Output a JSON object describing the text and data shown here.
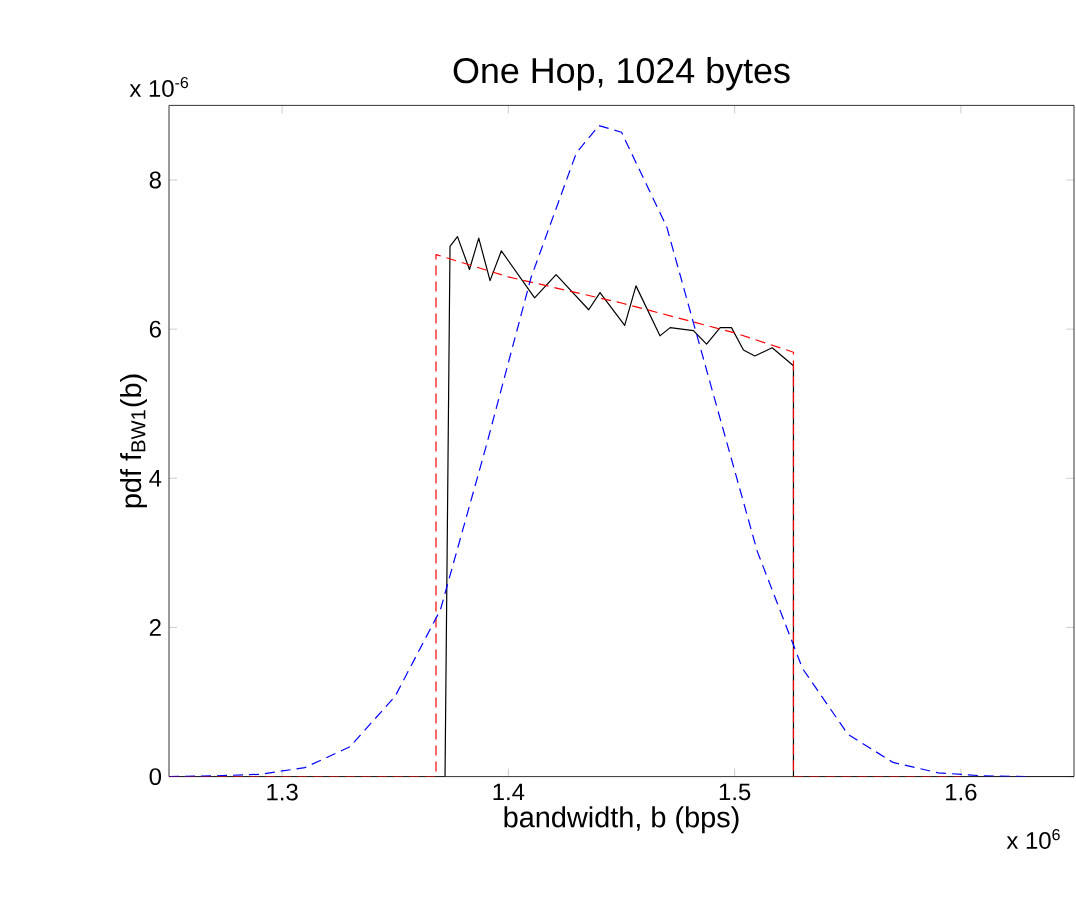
{
  "chart_data": {
    "type": "line",
    "title": "One Hop, 1024 bytes",
    "xlabel": "bandwidth, b (bps)",
    "ylabel": "pdf f$_{BW1}$(b)",
    "annotations": [
      "x 10$^{-6}$",
      "x 10$^{6}$"
    ],
    "xlim": [
      1.25,
      1.65
    ],
    "ylim": [
      0,
      9
    ],
    "xticks": [
      1.3,
      1.4,
      1.5,
      1.6
    ],
    "yticks": [
      0,
      2,
      4,
      6,
      8
    ],
    "grid": false,
    "marker": "none",
    "series": [
      {
        "color": "#000000",
        "line_style": "solid",
        "x": [
          1.25,
          1.372,
          1.3742,
          1.3775,
          1.3828,
          1.3869,
          1.3919,
          1.3969,
          1.4116,
          1.4211,
          1.4355,
          1.4405,
          1.4514,
          1.4564,
          1.467,
          1.4715,
          1.4818,
          1.4876,
          1.4936,
          1.4986,
          1.5039,
          1.5089,
          1.5166,
          1.526,
          1.526,
          1.65
        ],
        "values": [
          0,
          0,
          7.11,
          7.24,
          6.8,
          7.22,
          6.65,
          7.05,
          6.42,
          6.73,
          6.26,
          6.49,
          6.05,
          6.58,
          5.91,
          6.02,
          5.98,
          5.8,
          6.02,
          6.02,
          5.72,
          5.64,
          5.75,
          5.51,
          0,
          0
        ]
      },
      {
        "color": "#ff0000",
        "line_style": "dashed",
        "x": [
          1.25,
          1.368,
          1.368,
          1.4,
          1.45,
          1.5,
          1.526,
          1.526,
          1.6
        ],
        "values": [
          0,
          0,
          7.0,
          6.7,
          6.35,
          5.95,
          5.69,
          0,
          0
        ]
      },
      {
        "color": "#0000ff",
        "line_style": "dashed",
        "x": [
          1.25,
          1.27,
          1.29,
          1.31,
          1.33,
          1.35,
          1.37,
          1.39,
          1.41,
          1.43,
          1.44,
          1.45,
          1.47,
          1.49,
          1.51,
          1.53,
          1.55,
          1.57,
          1.59,
          1.61,
          1.63
        ],
        "values": [
          0,
          0.01,
          0.03,
          0.12,
          0.4,
          1.08,
          2.24,
          4.41,
          6.69,
          8.36,
          8.73,
          8.64,
          7.37,
          5.19,
          3.02,
          1.45,
          0.57,
          0.19,
          0.05,
          0.01,
          0
        ]
      }
    ]
  }
}
